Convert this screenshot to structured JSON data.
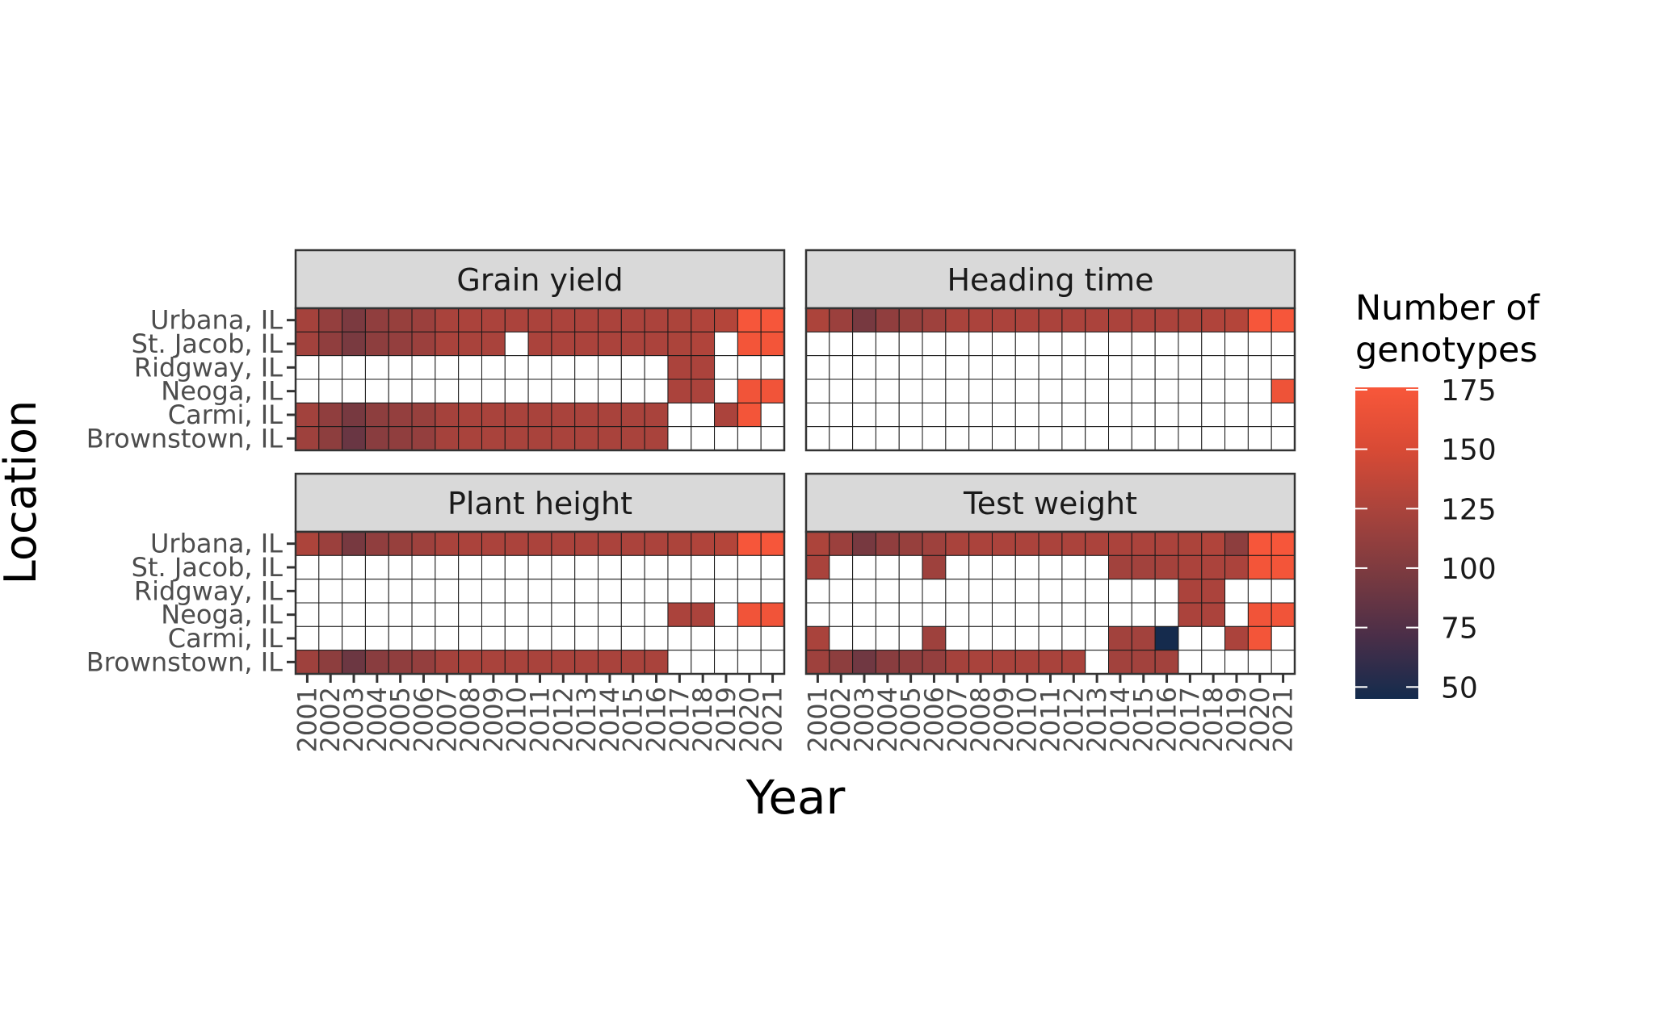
{
  "chart_data": {
    "type": "heatmap",
    "x_title": "Year",
    "y_title": "Location",
    "years": [
      "2001",
      "2002",
      "2003",
      "2004",
      "2005",
      "2006",
      "2007",
      "2008",
      "2009",
      "2010",
      "2011",
      "2012",
      "2013",
      "2014",
      "2015",
      "2016",
      "2017",
      "2018",
      "2019",
      "2020",
      "2021"
    ],
    "locations": [
      "Urbana, IL",
      "St. Jacob, IL",
      "Ridgway, IL",
      "Neoga, IL",
      "Carmi, IL",
      "Brownstown, IL"
    ],
    "legend": {
      "title_line1": "Number of",
      "title_line2": "genotypes",
      "ticks": [
        50,
        75,
        100,
        125,
        150,
        175
      ],
      "min": 45,
      "max": 176,
      "colors": [
        "#132b4d",
        "#4a2e48",
        "#7a3a40",
        "#a8433c",
        "#d84a35",
        "#f8573a"
      ]
    },
    "panels": [
      {
        "title": "Grain yield",
        "values": [
          [
            122,
            112,
            98,
            110,
            114,
            116,
            124,
            125,
            125,
            125,
            125,
            125,
            125,
            125,
            125,
            125,
            126,
            128,
            130,
            174,
            174
          ],
          [
            120,
            110,
            97,
            108,
            112,
            116,
            124,
            124,
            124,
            null,
            125,
            125,
            125,
            125,
            125,
            125,
            126,
            128,
            null,
            172,
            172
          ],
          [
            null,
            null,
            null,
            null,
            null,
            null,
            null,
            null,
            null,
            null,
            null,
            null,
            null,
            null,
            null,
            null,
            125,
            125,
            null,
            null,
            null
          ],
          [
            null,
            null,
            null,
            null,
            null,
            null,
            null,
            null,
            null,
            null,
            null,
            null,
            null,
            null,
            null,
            null,
            125,
            125,
            null,
            170,
            170
          ],
          [
            120,
            110,
            96,
            108,
            112,
            114,
            122,
            124,
            124,
            124,
            124,
            124,
            124,
            124,
            124,
            124,
            null,
            null,
            125,
            172,
            null
          ],
          [
            118,
            108,
            88,
            106,
            110,
            112,
            122,
            124,
            124,
            124,
            124,
            124,
            124,
            124,
            124,
            124,
            null,
            null,
            null,
            null,
            null
          ]
        ]
      },
      {
        "title": "Heading time",
        "values": [
          [
            126,
            116,
            96,
            110,
            114,
            118,
            124,
            125,
            125,
            125,
            125,
            125,
            125,
            125,
            125,
            125,
            126,
            128,
            130,
            174,
            174
          ],
          [
            null,
            null,
            null,
            null,
            null,
            null,
            null,
            null,
            null,
            null,
            null,
            null,
            null,
            null,
            null,
            null,
            null,
            null,
            null,
            null,
            null
          ],
          [
            null,
            null,
            null,
            null,
            null,
            null,
            null,
            null,
            null,
            null,
            null,
            null,
            null,
            null,
            null,
            null,
            null,
            null,
            null,
            null,
            null
          ],
          [
            null,
            null,
            null,
            null,
            null,
            null,
            null,
            null,
            null,
            null,
            null,
            null,
            null,
            null,
            null,
            null,
            null,
            null,
            null,
            null,
            168
          ],
          [
            null,
            null,
            null,
            null,
            null,
            null,
            null,
            null,
            null,
            null,
            null,
            null,
            null,
            null,
            null,
            null,
            null,
            null,
            null,
            null,
            null
          ],
          [
            null,
            null,
            null,
            null,
            null,
            null,
            null,
            null,
            null,
            null,
            null,
            null,
            null,
            null,
            null,
            null,
            null,
            null,
            null,
            null,
            null
          ]
        ]
      },
      {
        "title": "Plant height",
        "values": [
          [
            126,
            116,
            96,
            110,
            114,
            118,
            124,
            125,
            125,
            125,
            125,
            125,
            125,
            125,
            125,
            125,
            126,
            128,
            130,
            174,
            174
          ],
          [
            null,
            null,
            null,
            null,
            null,
            null,
            null,
            null,
            null,
            null,
            null,
            null,
            null,
            null,
            null,
            null,
            null,
            null,
            null,
            null,
            null
          ],
          [
            null,
            null,
            null,
            null,
            null,
            null,
            null,
            null,
            null,
            null,
            null,
            null,
            null,
            null,
            null,
            null,
            null,
            null,
            null,
            null,
            null
          ],
          [
            null,
            null,
            null,
            null,
            null,
            null,
            null,
            null,
            null,
            null,
            null,
            null,
            null,
            null,
            null,
            null,
            125,
            125,
            null,
            170,
            170
          ],
          [
            null,
            null,
            null,
            null,
            null,
            null,
            null,
            null,
            null,
            null,
            null,
            null,
            null,
            null,
            null,
            null,
            null,
            null,
            null,
            null,
            null
          ],
          [
            118,
            108,
            90,
            106,
            110,
            112,
            122,
            124,
            124,
            124,
            124,
            124,
            124,
            124,
            124,
            124,
            null,
            null,
            null,
            null,
            null
          ]
        ]
      },
      {
        "title": "Test weight",
        "values": [
          [
            126,
            116,
            96,
            110,
            114,
            118,
            124,
            125,
            125,
            125,
            125,
            125,
            125,
            125,
            125,
            125,
            126,
            128,
            108,
            174,
            174
          ],
          [
            124,
            null,
            null,
            null,
            null,
            118,
            null,
            null,
            null,
            null,
            null,
            null,
            null,
            120,
            120,
            122,
            125,
            125,
            125,
            172,
            172
          ],
          [
            null,
            null,
            null,
            null,
            null,
            null,
            null,
            null,
            null,
            null,
            null,
            null,
            null,
            null,
            null,
            null,
            125,
            125,
            null,
            null,
            null
          ],
          [
            null,
            null,
            null,
            null,
            null,
            null,
            null,
            null,
            null,
            null,
            null,
            null,
            null,
            null,
            null,
            null,
            125,
            125,
            null,
            170,
            170
          ],
          [
            124,
            null,
            null,
            null,
            null,
            118,
            null,
            null,
            null,
            null,
            null,
            null,
            null,
            120,
            120,
            46,
            null,
            null,
            125,
            172,
            null
          ],
          [
            118,
            108,
            92,
            106,
            110,
            112,
            122,
            124,
            124,
            124,
            124,
            124,
            null,
            120,
            120,
            120,
            null,
            null,
            null,
            null,
            null
          ]
        ]
      }
    ]
  }
}
